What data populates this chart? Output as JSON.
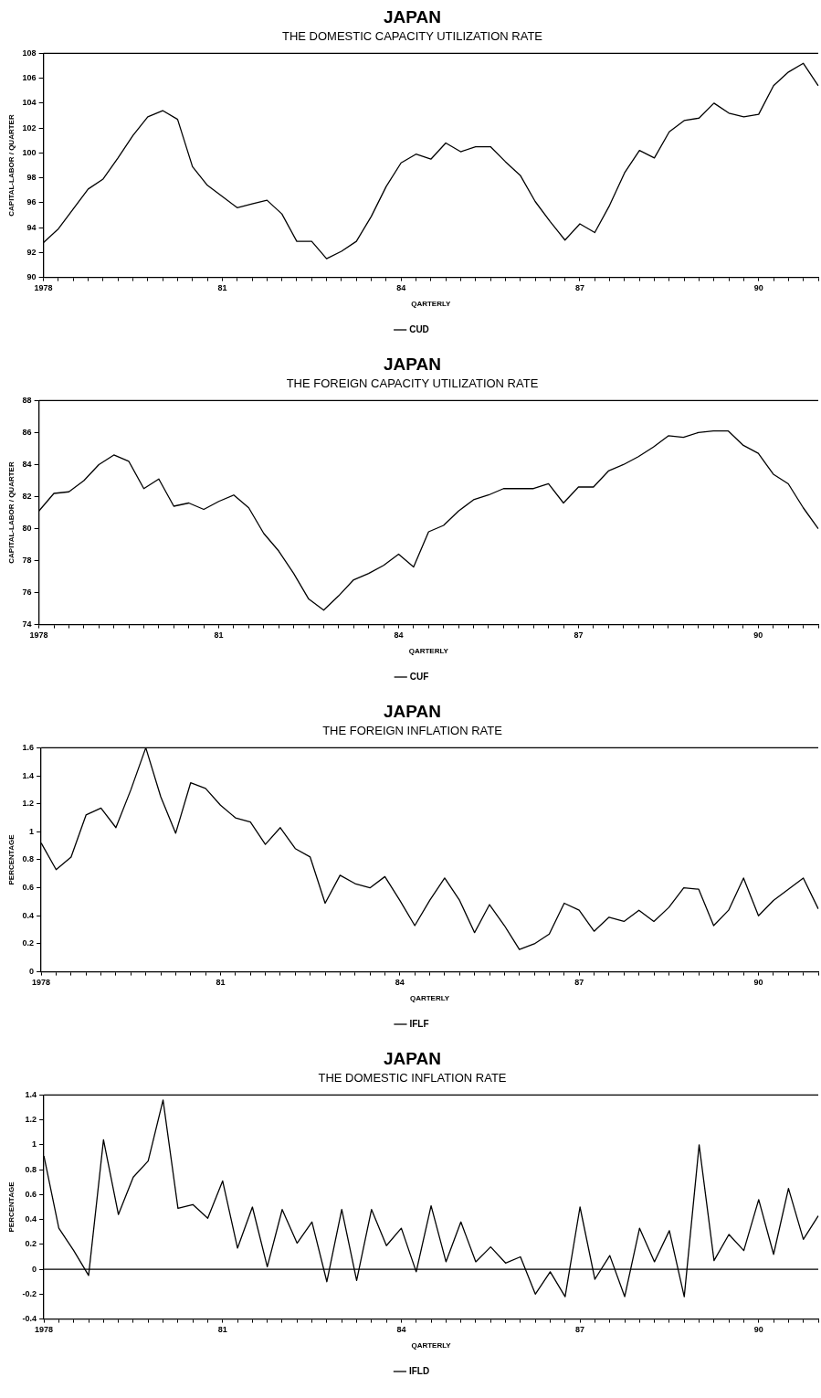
{
  "chart_data": [
    {
      "type": "line",
      "title": "JAPAN",
      "subtitle": "THE DOMESTIC CAPACITY UTILIZATION RATE",
      "xlabel": "QARTERLY",
      "ylabel": "CAPITAL-LABOR / QUARTER",
      "marker": "none",
      "legend": "bottom",
      "categories": [
        "1978",
        null,
        null,
        null,
        null,
        null,
        null,
        null,
        null,
        null,
        null,
        null,
        "81",
        null,
        null,
        null,
        null,
        null,
        null,
        null,
        null,
        null,
        null,
        null,
        "84",
        null,
        null,
        null,
        null,
        null,
        null,
        null,
        null,
        null,
        null,
        null,
        "87",
        null,
        null,
        null,
        null,
        null,
        null,
        null,
        null,
        null,
        null,
        null,
        "90",
        null,
        null,
        null,
        null
      ],
      "ylim": [
        90,
        108
      ],
      "yticks": [
        90,
        92,
        94,
        96,
        98,
        100,
        102,
        104,
        106,
        108
      ],
      "series": [
        {
          "name": "CUD",
          "color": "#000000",
          "values": [
            92.8,
            93.9,
            95.5,
            97.1,
            97.9,
            99.6,
            101.4,
            102.9,
            103.4,
            102.7,
            98.9,
            97.4,
            96.5,
            95.6,
            95.9,
            96.2,
            95.1,
            92.9,
            92.9,
            91.5,
            92.1,
            92.9,
            94.9,
            97.3,
            99.2,
            99.9,
            99.5,
            100.8,
            100.1,
            100.5,
            100.5,
            99.3,
            98.2,
            96.1,
            94.5,
            93.0,
            94.3,
            93.6,
            95.8,
            98.4,
            100.2,
            99.6,
            101.7,
            102.6,
            102.8,
            104.0,
            103.2,
            102.9,
            103.1,
            105.4,
            106.5,
            107.2,
            105.4
          ]
        }
      ]
    },
    {
      "type": "line",
      "title": "JAPAN",
      "subtitle": "THE FOREIGN CAPACITY UTILIZATION RATE",
      "xlabel": "QARTERLY",
      "ylabel": "CAPITAL-LABOR / QUARTER",
      "marker": "none",
      "legend": "bottom",
      "categories": [
        "1978",
        null,
        null,
        null,
        null,
        null,
        null,
        null,
        null,
        null,
        null,
        null,
        "81",
        null,
        null,
        null,
        null,
        null,
        null,
        null,
        null,
        null,
        null,
        null,
        "84",
        null,
        null,
        null,
        null,
        null,
        null,
        null,
        null,
        null,
        null,
        null,
        "87",
        null,
        null,
        null,
        null,
        null,
        null,
        null,
        null,
        null,
        null,
        null,
        "90",
        null,
        null,
        null,
        null
      ],
      "ylim": [
        74,
        88
      ],
      "yticks": [
        74,
        76,
        78,
        80,
        82,
        84,
        86,
        88
      ],
      "series": [
        {
          "name": "CUF",
          "color": "#000000",
          "values": [
            81.1,
            82.2,
            82.3,
            83.0,
            84.0,
            84.6,
            84.2,
            82.5,
            83.1,
            81.4,
            81.6,
            81.2,
            81.7,
            82.1,
            81.3,
            79.7,
            78.6,
            77.2,
            75.6,
            74.9,
            75.8,
            76.8,
            77.2,
            77.7,
            78.4,
            77.6,
            79.8,
            80.2,
            81.1,
            81.8,
            82.1,
            82.5,
            82.5,
            82.5,
            82.8,
            81.6,
            82.6,
            82.6,
            83.6,
            84.0,
            84.5,
            85.1,
            85.8,
            85.7,
            86.0,
            86.1,
            86.1,
            85.2,
            84.7,
            83.4,
            82.8,
            81.3,
            80.0
          ]
        }
      ]
    },
    {
      "type": "line",
      "title": "JAPAN",
      "subtitle": "THE FOREIGN INFLATION RATE",
      "xlabel": "QARTERLY",
      "ylabel": "PERCENTAGE",
      "marker": "none",
      "legend": "bottom",
      "categories": [
        "1978",
        null,
        null,
        null,
        null,
        null,
        null,
        null,
        null,
        null,
        null,
        null,
        "81",
        null,
        null,
        null,
        null,
        null,
        null,
        null,
        null,
        null,
        null,
        null,
        "84",
        null,
        null,
        null,
        null,
        null,
        null,
        null,
        null,
        null,
        null,
        null,
        "87",
        null,
        null,
        null,
        null,
        null,
        null,
        null,
        null,
        null,
        null,
        null,
        "90",
        null,
        null,
        null,
        null
      ],
      "ylim": [
        0,
        1.6
      ],
      "yticks": [
        0,
        0.2,
        0.4,
        0.6,
        0.8,
        1,
        1.2,
        1.4,
        1.6
      ],
      "series": [
        {
          "name": "IFLF",
          "color": "#000000",
          "values": [
            0.92,
            0.73,
            0.82,
            1.12,
            1.17,
            1.03,
            1.3,
            1.6,
            1.25,
            0.99,
            1.35,
            1.31,
            1.19,
            1.1,
            1.07,
            0.91,
            1.03,
            0.88,
            0.82,
            0.49,
            0.69,
            0.63,
            0.6,
            0.68,
            0.51,
            0.33,
            0.51,
            0.67,
            0.51,
            0.28,
            0.48,
            0.33,
            0.16,
            0.2,
            0.27,
            0.49,
            0.44,
            0.29,
            0.39,
            0.36,
            0.44,
            0.36,
            0.46,
            0.6,
            0.59,
            0.33,
            0.44,
            0.67,
            0.4,
            0.51,
            0.59,
            0.67,
            0.45
          ]
        }
      ]
    },
    {
      "type": "line",
      "title": "JAPAN",
      "subtitle": "THE DOMESTIC INFLATION RATE",
      "xlabel": "QARTERLY",
      "ylabel": "PERCENTAGE",
      "marker": "none",
      "legend": "bottom",
      "categories": [
        "1978",
        null,
        null,
        null,
        null,
        null,
        null,
        null,
        null,
        null,
        null,
        null,
        "81",
        null,
        null,
        null,
        null,
        null,
        null,
        null,
        null,
        null,
        null,
        null,
        "84",
        null,
        null,
        null,
        null,
        null,
        null,
        null,
        null,
        null,
        null,
        null,
        "87",
        null,
        null,
        null,
        null,
        null,
        null,
        null,
        null,
        null,
        null,
        null,
        "90",
        null,
        null,
        null,
        null
      ],
      "ylim": [
        -0.4,
        1.4
      ],
      "yticks": [
        -0.4,
        -0.2,
        0,
        0.2,
        0.4,
        0.6,
        0.8,
        1,
        1.2,
        1.4
      ],
      "ref_lines": [
        {
          "axis": "y",
          "value": 0,
          "color": "#000000"
        }
      ],
      "series": [
        {
          "name": "IFLD",
          "color": "#000000",
          "values": [
            0.91,
            0.33,
            0.15,
            -0.05,
            1.04,
            0.44,
            0.74,
            0.87,
            1.36,
            0.49,
            0.52,
            0.41,
            0.71,
            0.17,
            0.5,
            0.02,
            0.48,
            0.21,
            0.38,
            -0.1,
            0.48,
            -0.09,
            0.48,
            0.19,
            0.33,
            -0.02,
            0.51,
            0.06,
            0.38,
            0.06,
            0.18,
            0.05,
            0.1,
            -0.2,
            -0.02,
            -0.22,
            0.5,
            -0.08,
            0.11,
            -0.22,
            0.33,
            0.06,
            0.31,
            -0.22,
            1.0,
            0.07,
            0.28,
            0.15,
            0.56,
            0.12,
            0.65,
            0.24,
            0.43
          ]
        }
      ]
    }
  ]
}
